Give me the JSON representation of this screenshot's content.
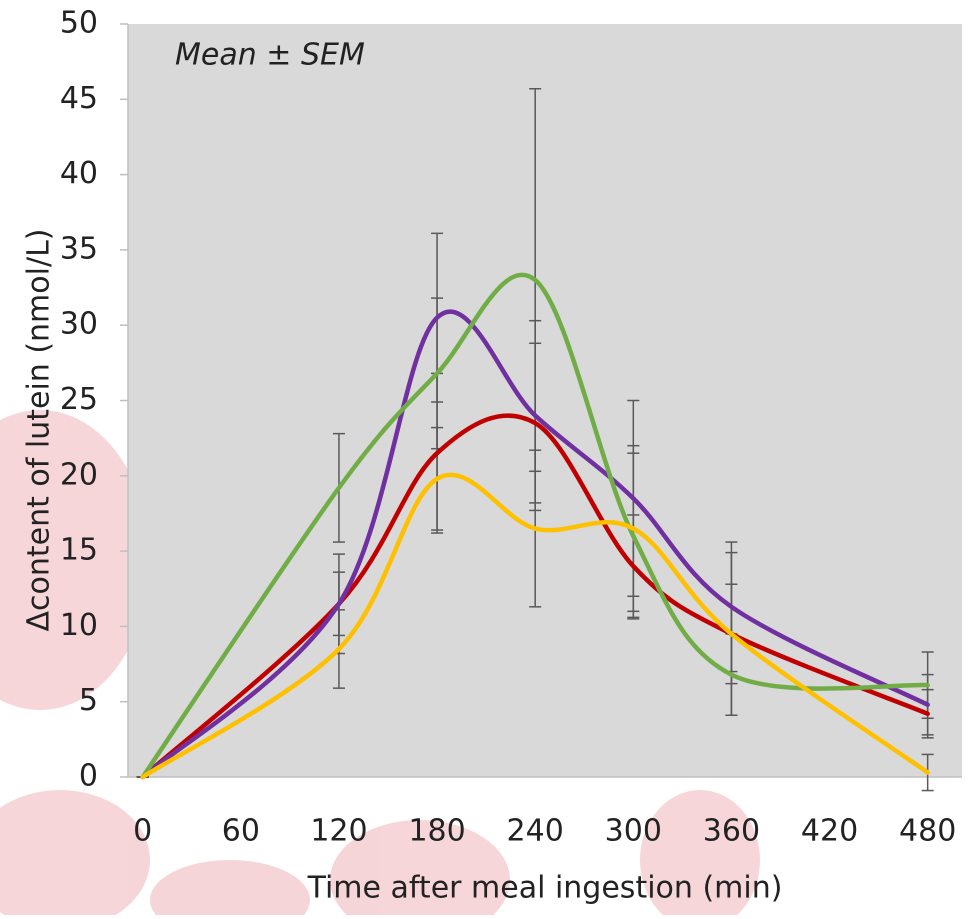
{
  "chart_data": {
    "type": "line",
    "annotation": "Mean ± SEM",
    "x_label": "Time after meal ingestion (min)",
    "y_label": "Δcontent of lutein (nmol/L)",
    "x": [
      0,
      120,
      180,
      240,
      300,
      360,
      480
    ],
    "xlim": [
      -9,
      501
    ],
    "xticks": [
      0,
      60,
      120,
      180,
      240,
      300,
      360,
      420,
      480
    ],
    "ylim": [
      0,
      50
    ],
    "yticks": [
      0,
      5,
      10,
      15,
      20,
      25,
      30,
      35,
      40,
      45,
      50
    ],
    "smooth": true,
    "series": [
      {
        "color": "#c00000",
        "values": [
          0,
          11.5,
          21.5,
          23.5,
          14,
          9.5,
          4.2
        ],
        "errors": [
          0,
          3.3,
          5.3,
          5.3,
          3.4,
          3.3,
          1.6
        ]
      },
      {
        "color": "#7030a0",
        "values": [
          0,
          11.5,
          30.5,
          24,
          18.5,
          11.3,
          4.8
        ],
        "errors": [
          0,
          2.1,
          5.6,
          6.3,
          6.5,
          4.3,
          2
        ]
      },
      {
        "color": "#70ad47",
        "values": [
          0,
          19.2,
          26.8,
          33,
          16,
          6.8,
          6.1
        ],
        "errors": [
          0,
          3.6,
          5,
          12.7,
          5.5,
          2.7,
          2.2
        ]
      },
      {
        "color": "#ffc000",
        "values": [
          0,
          8.5,
          19.8,
          16.5,
          16.5,
          9.5,
          0.3
        ],
        "errors": [
          0,
          2.6,
          3.4,
          5.2,
          5.5,
          5.4,
          1.2
        ]
      }
    ]
  }
}
